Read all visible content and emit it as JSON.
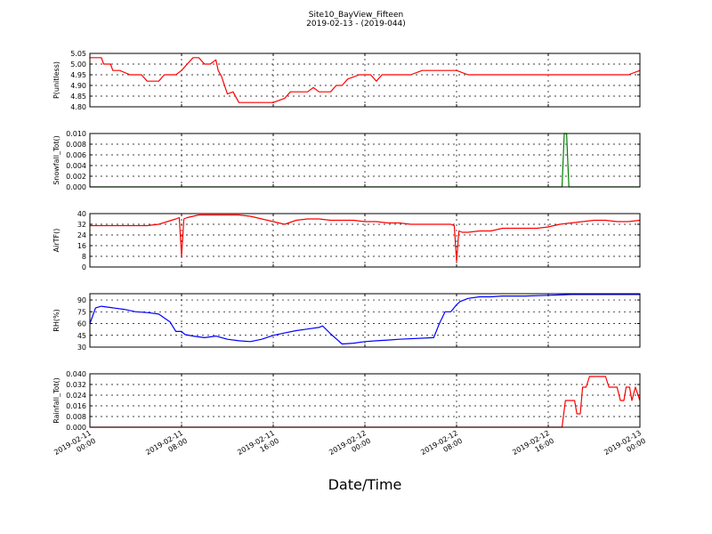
{
  "title": {
    "line1": "Site10_BayView_Fifteen",
    "line2": "2019-02-13 - (2019-044)"
  },
  "xlabel": "Date/Time",
  "chart_data": [
    {
      "type": "line",
      "ylabel": "P(unitless)",
      "color": "#ff0000",
      "ylim": [
        4.8,
        5.05
      ],
      "yticks": [
        4.8,
        4.85,
        4.9,
        4.95,
        5.0,
        5.05
      ],
      "ytick_labels": [
        "4.80",
        "4.85",
        "4.90",
        "4.95",
        "5.00",
        "5.05"
      ],
      "x": [
        0,
        1.0,
        1.2,
        1.8,
        2.0,
        2.2,
        2.6,
        3.5,
        4.0,
        4.5,
        5.0,
        5.8,
        5.9,
        6.0,
        6.5,
        7.0,
        7.5,
        8.0,
        8.5,
        9.0,
        9.5,
        10.0,
        10.5,
        11.0,
        11.2,
        11.5,
        12.0,
        12.5,
        13.0,
        13.4,
        13.6,
        13.8,
        14.0,
        14.3,
        14.6,
        15.0,
        15.5,
        16.0,
        17.0,
        17.5,
        18.0,
        18.3,
        19.0,
        19.5,
        20.0,
        20.3,
        20.5,
        21.0,
        21.5,
        22.0,
        22.5,
        23.5,
        24.0,
        24.5,
        25.0,
        25.5,
        26.0,
        26.5,
        27.0,
        27.5,
        28.0,
        29.0,
        29.5,
        30.0,
        31.0,
        32.0,
        33.0,
        34.0,
        35.0,
        36.0,
        37.0,
        38.0,
        39.0,
        40.0,
        41.0,
        42.0,
        43.0,
        44.0,
        45.0,
        46.0,
        47.0,
        48.0
      ],
      "y": [
        5.03,
        5.03,
        5.0,
        5.0,
        4.97,
        4.97,
        4.97,
        4.95,
        4.95,
        4.95,
        4.92,
        4.92,
        4.92,
        4.92,
        4.95,
        4.95,
        4.95,
        4.97,
        5.0,
        5.03,
        5.03,
        5.0,
        5.0,
        5.02,
        4.97,
        4.94,
        4.86,
        4.87,
        4.82,
        4.82,
        4.82,
        4.82,
        4.82,
        4.82,
        4.82,
        4.82,
        4.82,
        4.82,
        4.84,
        4.87,
        4.87,
        4.87,
        4.87,
        4.89,
        4.87,
        4.87,
        4.87,
        4.87,
        4.9,
        4.9,
        4.93,
        4.95,
        4.95,
        4.95,
        4.92,
        4.95,
        4.95,
        4.95,
        4.95,
        4.95,
        4.95,
        4.97,
        4.97,
        4.97,
        4.97,
        4.97,
        4.95,
        4.95,
        4.95,
        4.95,
        4.95,
        4.95,
        4.95,
        4.95,
        4.95,
        4.95,
        4.95,
        4.95,
        4.95,
        4.95,
        4.95,
        4.97
      ]
    },
    {
      "type": "line",
      "ylabel": "Snowfall_Tot()",
      "color": "#008000",
      "ylim": [
        0,
        0.01
      ],
      "yticks": [
        0,
        0.002,
        0.004,
        0.006,
        0.008,
        0.01
      ],
      "ytick_labels": [
        "0.000",
        "0.002",
        "0.004",
        "0.006",
        "0.008",
        "0.010"
      ],
      "x": [
        0,
        41.0,
        41.2,
        41.4,
        41.6,
        41.8,
        48.0
      ],
      "y": [
        0,
        0,
        0,
        0.01,
        0.01,
        0,
        0
      ]
    },
    {
      "type": "line",
      "ylabel": "AirTF()",
      "color": "#ff0000",
      "ylim": [
        0,
        40
      ],
      "yticks": [
        0,
        8,
        16,
        24,
        32,
        40
      ],
      "ytick_labels": [
        "0",
        "8",
        "16",
        "24",
        "32",
        "40"
      ],
      "x": [
        0,
        1.0,
        2.0,
        3.0,
        4.0,
        5.0,
        6.0,
        7.5,
        7.8,
        8.0,
        8.2,
        8.5,
        9.0,
        9.5,
        10.0,
        11.0,
        12.0,
        13.0,
        14.0,
        15.0,
        16.0,
        17.0,
        18.0,
        19.0,
        20.0,
        21.0,
        22.0,
        23.0,
        24.0,
        25.0,
        26.0,
        27.0,
        28.0,
        29.0,
        31.5,
        31.8,
        32.0,
        32.2,
        32.5,
        33.0,
        34.0,
        35.0,
        35.5,
        36.0,
        37.0,
        38.0,
        39.0,
        40.0,
        41.0,
        42.0,
        43.0,
        44.0,
        45.0,
        46.0,
        47.0,
        48.0
      ],
      "y": [
        31,
        31,
        31,
        31,
        31,
        31,
        32,
        36,
        37,
        8,
        36,
        37,
        38,
        39,
        39,
        39,
        39,
        39,
        38,
        36,
        34,
        32,
        35,
        36,
        36,
        35,
        35,
        35,
        34,
        34,
        33,
        33,
        32,
        32,
        32,
        31,
        4,
        27,
        26,
        26,
        27,
        27,
        28,
        29,
        29,
        29,
        29,
        30,
        32,
        33,
        34,
        35,
        35,
        34,
        34,
        35
      ]
    },
    {
      "type": "line",
      "ylabel": "RH(%)",
      "color": "#0000ff",
      "ylim": [
        30,
        98
      ],
      "yticks": [
        30,
        45,
        60,
        75,
        90
      ],
      "ytick_labels": [
        "30",
        "45",
        "60",
        "75",
        "90"
      ],
      "x": [
        0,
        0.5,
        1.0,
        2.0,
        3.0,
        4.0,
        5.0,
        6.0,
        7.0,
        7.5,
        8.0,
        8.3,
        9.0,
        10.0,
        11.0,
        11.5,
        12.0,
        13.0,
        14.0,
        15.0,
        16.0,
        17.0,
        18.0,
        19.0,
        20.0,
        20.3,
        21.0,
        22.0,
        23.0,
        24.0,
        25.0,
        26.0,
        27.0,
        30.0,
        30.5,
        31.0,
        31.5,
        32.0,
        32.3,
        33.0,
        34.0,
        35.0,
        36.0,
        38.0,
        40.0,
        42.0,
        44.0,
        48.0
      ],
      "y": [
        60,
        80,
        82,
        80,
        78,
        75,
        74,
        72,
        62,
        50,
        50,
        46,
        44,
        42,
        44,
        42,
        40,
        38,
        37,
        40,
        45,
        48,
        51,
        53,
        55,
        57,
        47,
        34,
        35,
        37,
        38,
        39,
        40,
        42,
        60,
        75,
        75,
        84,
        88,
        92,
        94,
        94,
        95,
        95,
        96,
        97,
        97,
        97
      ]
    },
    {
      "type": "line",
      "ylabel": "Rainfall_Tot()",
      "color": "#ff0000",
      "ylim": [
        0,
        0.04
      ],
      "yticks": [
        0,
        0.008,
        0.016,
        0.024,
        0.032,
        0.04
      ],
      "ytick_labels": [
        "0.000",
        "0.008",
        "0.016",
        "0.024",
        "0.032",
        "0.040"
      ],
      "x": [
        0,
        41.0,
        41.2,
        41.5,
        42.3,
        42.5,
        42.8,
        43.0,
        43.3,
        43.6,
        43.8,
        44.0,
        45.0,
        45.3,
        45.6,
        46.0,
        46.3,
        46.6,
        46.8,
        47.1,
        47.3,
        47.6,
        48.0
      ],
      "y": [
        0,
        0,
        0,
        0.02,
        0.02,
        0.01,
        0.01,
        0.03,
        0.03,
        0.038,
        0.038,
        0.038,
        0.038,
        0.03,
        0.03,
        0.03,
        0.02,
        0.02,
        0.03,
        0.03,
        0.02,
        0.03,
        0.02
      ]
    }
  ],
  "xaxis": {
    "range_hours": [
      0,
      48
    ],
    "ticks_hours": [
      0,
      8,
      16,
      24,
      32,
      40,
      48
    ],
    "tick_labels": [
      [
        "2019-02-11",
        "00:00"
      ],
      [
        "2019-02-11",
        "08:00"
      ],
      [
        "2019-02-11",
        "16:00"
      ],
      [
        "2019-02-12",
        "00:00"
      ],
      [
        "2019-02-12",
        "08:00"
      ],
      [
        "2019-02-12",
        "16:00"
      ],
      [
        "2019-02-13",
        "00:00"
      ]
    ]
  }
}
